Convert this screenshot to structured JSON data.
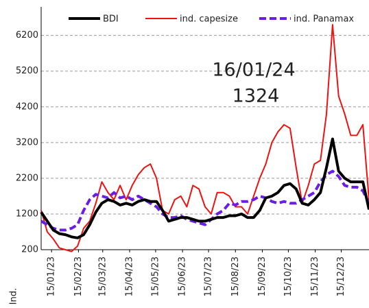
{
  "chart_data": {
    "type": "line",
    "ylabel": "Ind.",
    "annotation": [
      "16/01/24",
      "1324"
    ],
    "legend": "top",
    "grid": true,
    "x": [
      "03/01/23",
      "10/01/23",
      "17/01/23",
      "24/01/23",
      "31/01/23",
      "07/02/23",
      "14/02/23",
      "21/02/23",
      "28/02/23",
      "07/03/23",
      "14/03/23",
      "21/03/23",
      "28/03/23",
      "04/04/23",
      "11/04/23",
      "18/04/23",
      "25/04/23",
      "02/05/23",
      "09/05/23",
      "16/05/23",
      "23/05/23",
      "30/05/23",
      "06/06/23",
      "13/06/23",
      "20/06/23",
      "27/06/23",
      "04/07/23",
      "11/07/23",
      "18/07/23",
      "25/07/23",
      "01/08/23",
      "08/08/23",
      "15/08/23",
      "22/08/23",
      "29/08/23",
      "05/09/23",
      "12/09/23",
      "19/09/23",
      "26/09/23",
      "03/10/23",
      "10/10/23",
      "17/10/23",
      "24/10/23",
      "31/10/23",
      "07/11/23",
      "14/11/23",
      "21/11/23",
      "28/11/23",
      "05/12/23",
      "12/12/23",
      "19/12/23",
      "26/12/23",
      "02/01/24",
      "09/01/24",
      "16/01/24"
    ],
    "xlim": [
      "03/01/23",
      "16/01/24"
    ],
    "xticks": [
      "15/01/23",
      "15/02/23",
      "15/03/23",
      "15/04/23",
      "15/05/23",
      "15/06/23",
      "15/07/23",
      "15/08/23",
      "15/09/23",
      "15/10/23",
      "15/11/23",
      "15/12/23"
    ],
    "ylim": [
      200,
      7000
    ],
    "yticks": [
      200,
      1200,
      2200,
      3200,
      4200,
      5200,
      6200
    ],
    "series": [
      {
        "name": "BDI",
        "color": "#000000",
        "width": 4,
        "dashed": false,
        "values": [
          1250,
          1000,
          750,
          650,
          620,
          560,
          530,
          620,
          900,
          1250,
          1500,
          1600,
          1550,
          1450,
          1500,
          1450,
          1550,
          1600,
          1550,
          1550,
          1300,
          1000,
          1050,
          1100,
          1100,
          1050,
          1000,
          1000,
          1050,
          1100,
          1100,
          1150,
          1150,
          1200,
          1100,
          1100,
          1300,
          1650,
          1700,
          1800,
          2000,
          2050,
          1900,
          1500,
          1450,
          1600,
          1800,
          2500,
          3300,
          2400,
          2200,
          2100,
          2100,
          2100,
          1324
        ]
      },
      {
        "name": "ind. capesize",
        "color": "#ee1111",
        "width": 2,
        "dashed": false,
        "values": [
          1300,
          700,
          500,
          250,
          200,
          150,
          300,
          800,
          1000,
          1500,
          2100,
          1800,
          1600,
          2000,
          1600,
          2000,
          2300,
          2500,
          2600,
          2200,
          1300,
          1200,
          1600,
          1700,
          1400,
          2000,
          1900,
          1400,
          1200,
          1800,
          1800,
          1700,
          1400,
          1400,
          1200,
          1700,
          2200,
          2600,
          3200,
          3500,
          3700,
          3600,
          2500,
          1500,
          2000,
          2600,
          2700,
          4000,
          6500,
          4500,
          4000,
          3400,
          3400,
          3700,
          1600
        ]
      },
      {
        "name": "ind. Panamax",
        "color": "#6a1de8",
        "width": 4,
        "dashed": true,
        "values": [
          1000,
          900,
          800,
          750,
          750,
          800,
          900,
          1300,
          1600,
          1750,
          1700,
          1650,
          1800,
          1650,
          1700,
          1600,
          1700,
          1600,
          1500,
          1400,
          1200,
          1100,
          1100,
          1150,
          1050,
          1000,
          950,
          900,
          1050,
          1200,
          1300,
          1500,
          1450,
          1550,
          1550,
          1600,
          1700,
          1650,
          1550,
          1500,
          1550,
          1500,
          1500,
          1600,
          1700,
          1800,
          2100,
          2300,
          2400,
          2250,
          2000,
          1950,
          1950,
          1850,
          1500
        ]
      }
    ]
  }
}
